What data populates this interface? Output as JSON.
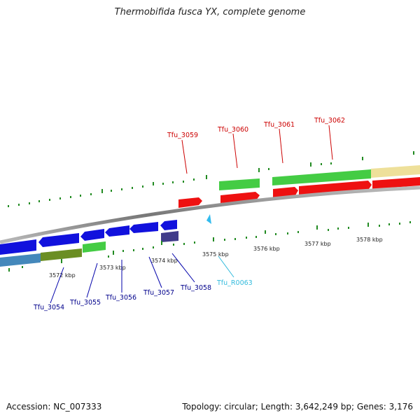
{
  "title": "Thermobifida fusca YX, complete genome",
  "footer": {
    "accession": "Accession: NC_007333",
    "summary": "Topology: circular; Length: 3,642,249 bp; Genes: 3,176"
  },
  "colors": {
    "forward_label": "#cc0000",
    "reverse_label": "#00008b",
    "rna_label": "#33bbdd",
    "backbone": "#888888",
    "tick": "#228b22"
  },
  "kbp_labels": [
    "3572 kbp",
    "3573 kbp",
    "3574 kbp",
    "3575 kbp",
    "3576 kbp",
    "3577 kbp",
    "3578 kbp"
  ],
  "gene_labels": {
    "forward": [
      "Tfu_3059",
      "Tfu_3060",
      "Tfu_3061",
      "Tfu_3062"
    ],
    "reverse": [
      "Tfu_3054",
      "Tfu_3055",
      "Tfu_3056",
      "Tfu_3057",
      "Tfu_3058"
    ],
    "rna": "Tfu_R0063"
  }
}
